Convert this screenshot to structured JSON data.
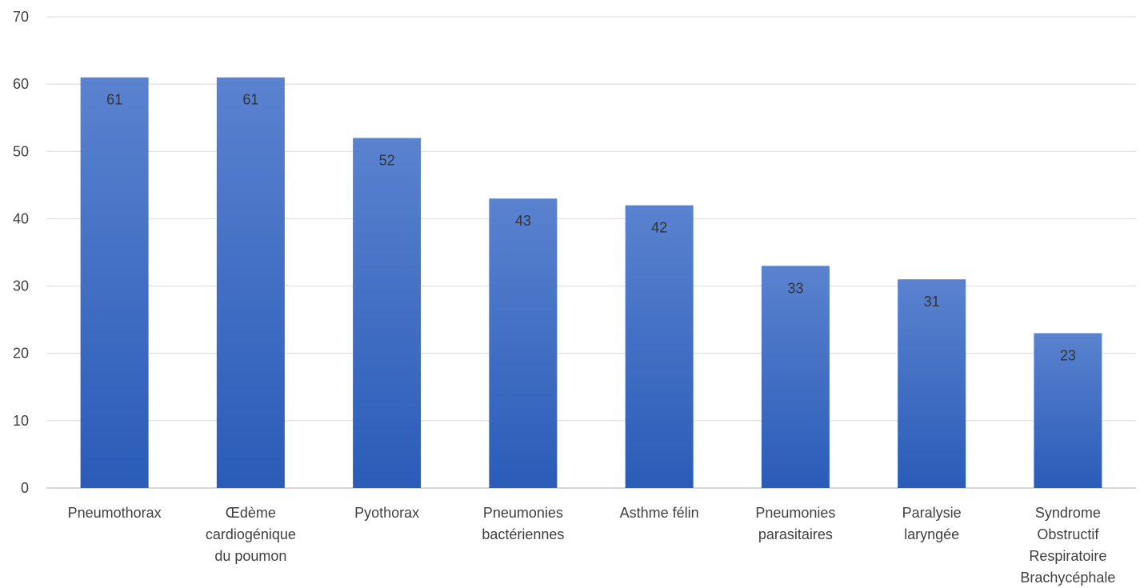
{
  "chart_data": {
    "type": "bar",
    "categories": [
      [
        "Pneumothorax"
      ],
      [
        "Œdème",
        "cardiogénique",
        "du poumon"
      ],
      [
        "Pyothorax"
      ],
      [
        "Pneumonies",
        "bactériennes"
      ],
      [
        "Asthme félin"
      ],
      [
        "Pneumonies",
        "parasitaires"
      ],
      [
        "Paralysie",
        "laryngée"
      ],
      [
        "Syndrome",
        "Obstructif",
        "Respiratoire",
        "Brachycéphale"
      ]
    ],
    "values": [
      61,
      61,
      52,
      43,
      42,
      33,
      31,
      23
    ],
    "ylim": [
      0,
      70
    ],
    "yticks": [
      0,
      10,
      20,
      30,
      40,
      50,
      60,
      70
    ],
    "grid": true,
    "colors": {
      "bar_top": "#5a82cf",
      "bar_bottom": "#2a5cb8"
    }
  }
}
